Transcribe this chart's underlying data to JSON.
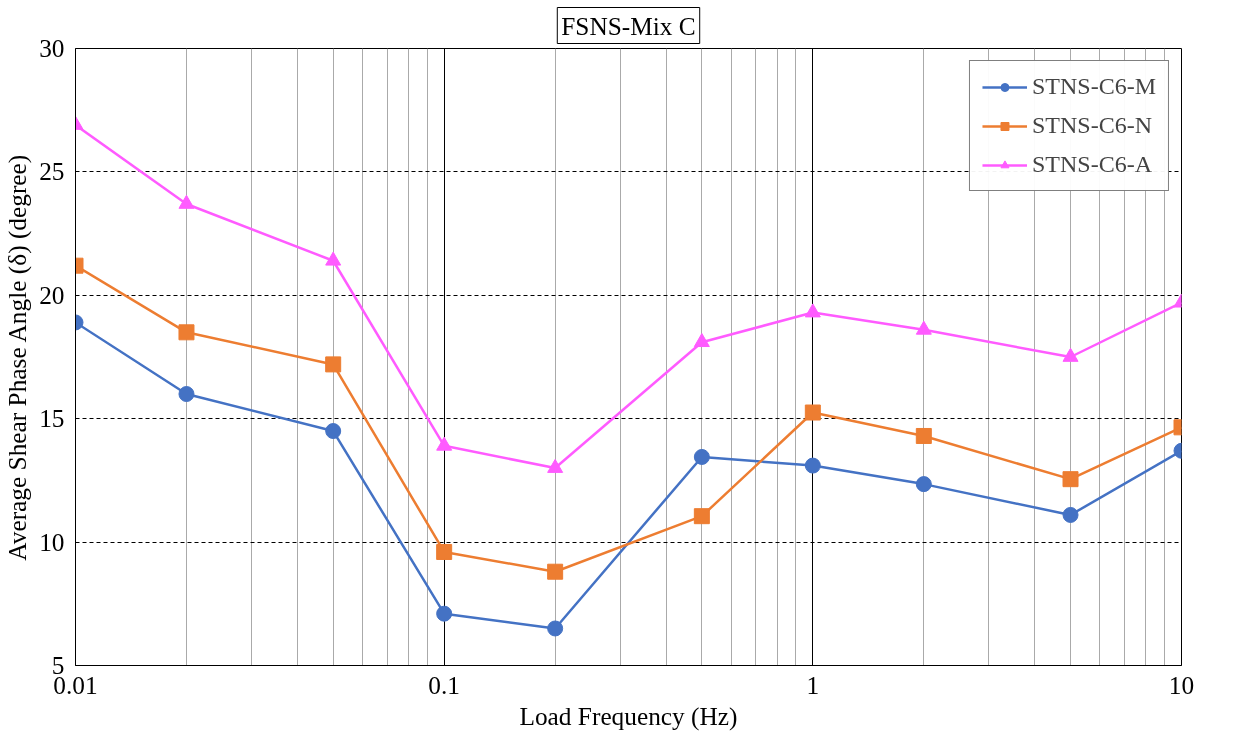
{
  "chart_data": {
    "type": "line",
    "title": "FSNS-Mix C",
    "xlabel": "Load Frequency (Hz)",
    "ylabel": "Average Shear Phase Angle (δ) (degree)",
    "x": [
      0.01,
      0.02,
      0.05,
      0.1,
      0.2,
      0.5,
      1,
      2,
      5,
      10
    ],
    "series": [
      {
        "name": "STNS-C6-M",
        "color": "#4472c4",
        "marker": "circle",
        "values": [
          18.9,
          16.0,
          14.5,
          7.1,
          6.5,
          13.45,
          13.1,
          12.35,
          11.1,
          13.7
        ]
      },
      {
        "name": "STNS-C6-N",
        "color": "#ed7d31",
        "marker": "square",
        "values": [
          21.2,
          18.5,
          17.2,
          9.6,
          8.8,
          11.05,
          15.25,
          14.3,
          12.55,
          14.65
        ]
      },
      {
        "name": "STNS-C6-A",
        "color": "#ff5bff",
        "marker": "triangle",
        "values": [
          26.9,
          23.7,
          21.4,
          13.9,
          13.0,
          18.1,
          19.3,
          18.6,
          17.5,
          19.7
        ]
      }
    ],
    "xlim": [
      0.01,
      10
    ],
    "xticks": [
      0.01,
      0.1,
      1,
      10
    ],
    "ylim": [
      5,
      30
    ],
    "yticks": [
      5,
      10,
      15,
      20,
      25,
      30
    ],
    "log": "x",
    "grid": true,
    "legend": "top right",
    "line_style": "solid"
  }
}
